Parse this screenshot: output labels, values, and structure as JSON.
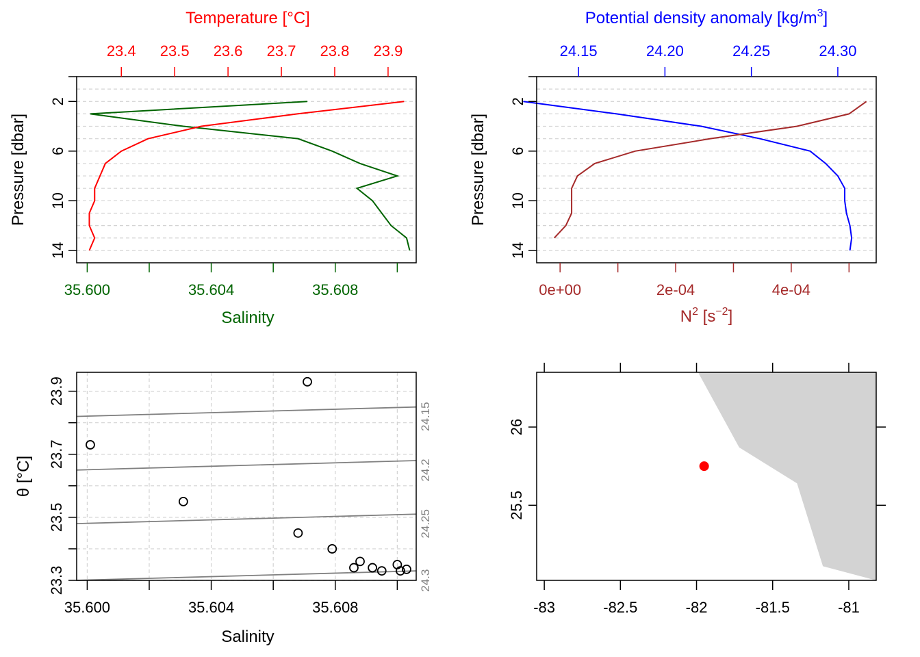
{
  "colors": {
    "temperature": "#ff0000",
    "salinity": "#006400",
    "density": "#0000ff",
    "n2": "#a52a2a",
    "grid": "#d3d3d3",
    "isopycnal": "#808080",
    "land": "#d3d3d3",
    "station": "#ff0000",
    "axis": "#000000"
  },
  "chart_data": [
    {
      "type": "line",
      "panel": "temperature-salinity-profile",
      "ylabel": "Pressure [dbar]",
      "ylim": [
        15,
        0
      ],
      "yticks": [
        "2",
        "6",
        "10",
        "14"
      ],
      "grid": true,
      "top_axis": {
        "label": "Temperature [°C]",
        "xlim": [
          23.3163,
          23.9527
        ],
        "ticks": [
          "23.4",
          "23.5",
          "23.6",
          "23.7",
          "23.8",
          "23.9"
        ]
      },
      "bottom_axis": {
        "label": "Salinity",
        "xlim": [
          35.59966,
          35.61061
        ],
        "ticks": [
          "35.600",
          "35.604",
          "35.608"
        ],
        "minor_ticks": [
          35.602,
          35.606,
          35.61
        ]
      },
      "pressure": [
        2,
        3,
        4,
        5,
        6,
        7,
        8,
        9,
        10,
        11,
        12,
        13,
        14
      ],
      "series": [
        {
          "name": "Temperature",
          "color_key": "temperature",
          "values": [
            23.93,
            23.73,
            23.55,
            23.45,
            23.4,
            23.37,
            23.36,
            23.35,
            23.35,
            23.34,
            23.34,
            23.35,
            23.34
          ]
        },
        {
          "name": "Salinity",
          "color_key": "salinity",
          "values": [
            35.6071,
            35.6001,
            35.6031,
            35.6068,
            35.6079,
            35.6088,
            35.61,
            35.6087,
            35.6092,
            35.6095,
            35.6098,
            35.6103,
            35.6104
          ]
        }
      ]
    },
    {
      "type": "line",
      "panel": "density-n2-profile",
      "ylabel": "Pressure [dbar]",
      "ylim": [
        15,
        0
      ],
      "yticks": [
        "2",
        "6",
        "10",
        "14"
      ],
      "grid": true,
      "top_axis": {
        "label": "Potential density anomaly [kg/m3]",
        "label_text": "Potential density anomaly [kg/m",
        "label_sup": "3",
        "label_end": "]",
        "xlim": [
          24.1258,
          24.3222
        ],
        "ticks": [
          "24.15",
          "24.20",
          "24.25",
          "24.30"
        ]
      },
      "bottom_axis": {
        "label": "N2 [s-2]",
        "label_text": "N",
        "label_sup": "2",
        "label_mid": " [s",
        "label_sup2": "−2",
        "label_end": "]",
        "xlim": [
          -4.05e-05,
          0.000547
        ],
        "ticks": [
          "0e+00",
          "2e-04",
          "4e-04"
        ],
        "minor_ticks": [
          0.0001,
          0.0003,
          0.0005
        ]
      },
      "pressure": [
        2,
        3,
        4,
        5,
        6,
        7,
        8,
        9,
        10,
        11,
        12,
        13,
        14
      ],
      "series": [
        {
          "name": "Potential density anomaly",
          "color_key": "density",
          "values": [
            24.118,
            24.172,
            24.221,
            24.255,
            24.284,
            24.293,
            24.3,
            24.304,
            24.304,
            24.305,
            24.307,
            24.308,
            24.307
          ]
        },
        {
          "name": "N2",
          "pressure": [
            2,
            3,
            4,
            5,
            6,
            7,
            8,
            9,
            10,
            11,
            12,
            13
          ],
          "color_key": "n2",
          "values": [
            0.00053,
            0.0005,
            0.00041,
            0.00026,
            0.00013,
            6e-05,
            3e-05,
            2e-05,
            2e-05,
            2e-05,
            1e-05,
            -1e-05
          ]
        }
      ]
    },
    {
      "type": "scatter",
      "panel": "ts-diagram",
      "xlabel": "Salinity",
      "ylabel": "θ [°C]",
      "xlim": [
        35.59966,
        35.61061
      ],
      "ylim": [
        23.3,
        23.96
      ],
      "xticks": [
        "35.600",
        "35.604",
        "35.608"
      ],
      "xminor_ticks": [
        35.602,
        35.606,
        35.61
      ],
      "yticks": [
        "23.3",
        "23.5",
        "23.7",
        "23.9"
      ],
      "yminor_ticks": [
        23.4,
        23.6,
        23.8
      ],
      "grid": true,
      "points": {
        "salinity": [
          35.6071,
          35.6001,
          35.6031,
          35.6068,
          35.6079,
          35.6088,
          35.6086,
          35.6092,
          35.6095,
          35.61,
          35.6101,
          35.6103
        ],
        "theta": [
          23.93,
          23.73,
          23.55,
          23.45,
          23.4,
          23.36,
          23.34,
          23.34,
          23.33,
          23.35,
          23.33,
          23.335
        ]
      },
      "isopycnals": [
        {
          "label": "24.15",
          "left": 23.82,
          "right": 23.85
        },
        {
          "label": "24.2",
          "left": 23.65,
          "right": 23.68
        },
        {
          "label": "24.25",
          "left": 23.48,
          "right": 23.51
        },
        {
          "label": "24.3",
          "left": 23.3,
          "right": 23.33
        }
      ]
    },
    {
      "type": "map",
      "panel": "station-map",
      "xlim": [
        -83.05,
        -80.82
      ],
      "ylim": [
        25.02,
        26.35
      ],
      "xticks": [
        "-83",
        "-82.5",
        "-82",
        "-81.5",
        "-81"
      ],
      "yticks": [
        "25.5",
        "26"
      ],
      "land_polygon": [
        [
          -81.99,
          26.35
        ],
        [
          -81.72,
          25.87
        ],
        [
          -81.34,
          25.64
        ],
        [
          -81.17,
          25.11
        ],
        [
          -80.82,
          25.02
        ],
        [
          -80.82,
          26.35
        ]
      ],
      "station": {
        "lon": -81.95,
        "lat": 25.75
      }
    }
  ]
}
